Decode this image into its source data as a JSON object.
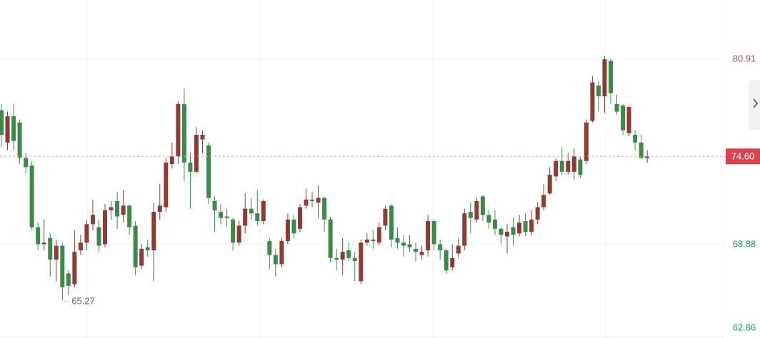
{
  "chart_data": {
    "type": "candlestick",
    "open": [
      77.6,
      75.5,
      77.2,
      76.8,
      74.5,
      74.0,
      70.0,
      68.9,
      69.3,
      67.9,
      68.8,
      67.0,
      66.3,
      68.5,
      69.0,
      70.2,
      70.0,
      68.9,
      71.1,
      71.7,
      70.8,
      71.4,
      70.1,
      67.5,
      68.7,
      68.5,
      71.0,
      71.3,
      74.1,
      74.6,
      78.0,
      74.2,
      73.6,
      75.7,
      75.3,
      71.7,
      71.0,
      70.7,
      70.5,
      69.0,
      70.1,
      71.2,
      70.9,
      70.4,
      69.1,
      68.2,
      67.6,
      69.1,
      70.5,
      69.9,
      71.4,
      71.8,
      71.6,
      71.9,
      70.5,
      68.0,
      67.9,
      68.5,
      68.0,
      66.5,
      69.0,
      69.2,
      69.0,
      70.1,
      71.4,
      69.3,
      69.0,
      68.9,
      68.6,
      68.2,
      68.5,
      70.4,
      68.9,
      68.5,
      67.4,
      68.3,
      68.8,
      71.0,
      70.5,
      72.0,
      70.8,
      70.5,
      69.9,
      69.4,
      70.0,
      69.6,
      70.4,
      69.7,
      70.5,
      71.3,
      72.2,
      73.3,
      74.3,
      73.6,
      73.6,
      74.4,
      74.3,
      76.9,
      79.2,
      78.5,
      80.8,
      78.0,
      77.9,
      76.1,
      76.0,
      75.5,
      74.5
    ],
    "high": [
      78.0,
      77.5,
      78.0,
      77.0,
      74.8,
      74.3,
      70.3,
      70.5,
      69.6,
      69.2,
      69.0,
      67.2,
      69.8,
      69.5,
      70.5,
      71.8,
      70.5,
      71.5,
      71.7,
      72.3,
      72.4,
      71.5,
      70.4,
      68.9,
      69.2,
      71.6,
      72.8,
      74.5,
      75.5,
      78.2,
      79.0,
      74.8,
      76.5,
      76.3,
      75.5,
      72.0,
      71.5,
      71.2,
      70.6,
      70.4,
      72.2,
      71.9,
      72.4,
      71.8,
      69.3,
      68.6,
      69.3,
      70.9,
      70.8,
      71.5,
      72.5,
      72.3,
      72.7,
      72.0,
      70.7,
      68.6,
      69.3,
      69.0,
      68.4,
      69.2,
      69.6,
      69.8,
      70.3,
      71.4,
      71.5,
      70.0,
      69.5,
      69.5,
      69.0,
      68.8,
      70.8,
      70.5,
      69.2,
      68.6,
      68.9,
      69.3,
      71.2,
      71.6,
      71.9,
      72.1,
      71.1,
      71.1,
      70.0,
      70.2,
      70.6,
      70.8,
      70.9,
      71.1,
      71.6,
      72.8,
      73.9,
      74.5,
      75.2,
      74.8,
      75.1,
      74.6,
      77.0,
      79.8,
      79.5,
      81.1,
      80.9,
      78.6,
      78.0,
      77.9,
      76.3,
      76.0,
      75.0
    ],
    "low": [
      75.2,
      75.0,
      75.0,
      74.1,
      73.5,
      69.8,
      68.5,
      68.5,
      66.8,
      66.5,
      65.27,
      65.6,
      66.1,
      68.2,
      68.5,
      69.8,
      68.4,
      68.7,
      70.5,
      69.9,
      70.3,
      69.5,
      66.9,
      67.3,
      68.1,
      66.5,
      70.5,
      71.0,
      73.8,
      74.1,
      73.0,
      71.2,
      73.5,
      74.8,
      71.5,
      69.7,
      70.2,
      70.0,
      68.5,
      68.8,
      69.6,
      70.5,
      70.1,
      70.2,
      67.3,
      66.8,
      67.4,
      68.9,
      69.3,
      69.7,
      71.2,
      71.3,
      70.6,
      69.7,
      67.7,
      67.2,
      66.9,
      67.8,
      66.5,
      66.3,
      68.8,
      68.6,
      68.8,
      69.8,
      68.7,
      68.6,
      68.1,
      68.4,
      67.8,
      67.9,
      68.1,
      68.5,
      67.9,
      67.0,
      67.2,
      68.0,
      68.5,
      69.6,
      70.3,
      70.4,
      69.9,
      69.5,
      68.9,
      68.3,
      68.8,
      69.4,
      69.4,
      69.5,
      70.2,
      71.1,
      72.1,
      73.0,
      73.4,
      73.4,
      73.1,
      73.2,
      74.1,
      76.8,
      77.5,
      77.4,
      78.0,
      77.3,
      76.0,
      75.9,
      75.0,
      74.4,
      74.2
    ],
    "close": [
      76.0,
      77.2,
      75.6,
      74.5,
      73.9,
      70.0,
      68.9,
      69.0,
      67.9,
      68.8,
      66.1,
      66.2,
      68.4,
      69.0,
      70.2,
      70.8,
      68.8,
      71.1,
      71.3,
      70.7,
      71.4,
      70.0,
      67.4,
      68.6,
      68.5,
      71.0,
      71.4,
      74.2,
      74.6,
      78.0,
      74.2,
      73.6,
      76.0,
      76.0,
      71.9,
      71.1,
      70.6,
      70.6,
      69.0,
      70.1,
      71.2,
      70.9,
      70.4,
      71.7,
      68.2,
      67.6,
      69.1,
      70.5,
      69.6,
      71.3,
      71.8,
      71.7,
      71.9,
      70.5,
      68.0,
      67.9,
      68.4,
      68.0,
      67.8,
      69.0,
      69.2,
      69.1,
      70.0,
      71.2,
      69.2,
      69.0,
      68.8,
      68.7,
      68.4,
      68.4,
      70.4,
      68.9,
      68.5,
      67.2,
      68.0,
      68.8,
      70.9,
      70.6,
      71.7,
      70.8,
      70.3,
      69.9,
      69.5,
      69.7,
      69.5,
      70.3,
      69.7,
      70.5,
      71.3,
      72.1,
      73.4,
      74.3,
      73.6,
      74.3,
      74.6,
      73.4,
      76.8,
      79.4,
      78.5,
      80.9,
      78.7,
      77.5,
      76.3,
      77.8,
      75.5,
      74.5,
      74.6
    ],
    "up_color": "#8e3a35",
    "down_color": "#3a8a4a",
    "ylim": [
      62.81,
      84.75
    ],
    "yticks": [
      62.86,
      68.88,
      80.91
    ],
    "grid": true,
    "last_price_label": "74.60",
    "min_label": "65.27"
  }
}
